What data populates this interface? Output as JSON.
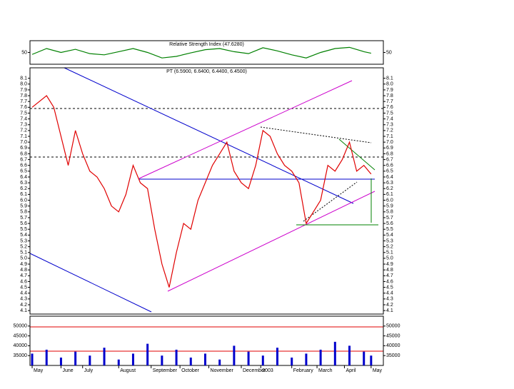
{
  "chart_data": [
    {
      "type": "line",
      "title": "Relative Strength Index (47.6280)",
      "x": [
        0,
        2,
        4,
        6,
        8,
        10,
        12,
        14,
        16,
        18,
        20,
        22,
        24,
        26,
        28,
        30,
        32,
        34,
        36,
        38,
        40,
        42,
        44,
        46,
        47
      ],
      "values": [
        45,
        60,
        50,
        58,
        47,
        44,
        52,
        60,
        50,
        36,
        40,
        49,
        57,
        60,
        52,
        47,
        62,
        54,
        44,
        36,
        50,
        60,
        63,
        52,
        48
      ],
      "color": "#008000",
      "xlim": [
        -0.3,
        48.7
      ],
      "ylim": [
        20,
        80
      ],
      "yticks": [
        50
      ]
    },
    {
      "type": "line",
      "title": "PT (6.5900, 6.6400, 6.4400, 6.4500)",
      "x": [
        0,
        1,
        2,
        3,
        4,
        5,
        6,
        7,
        8,
        9,
        10,
        11,
        12,
        13,
        14,
        15,
        16,
        17,
        18,
        19,
        20,
        21,
        22,
        23,
        24,
        25,
        26,
        27,
        28,
        29,
        30,
        31,
        32,
        33,
        34,
        35,
        36,
        37,
        38,
        39,
        40,
        41,
        42,
        43,
        44,
        45,
        46,
        47
      ],
      "values": [
        7.6,
        7.7,
        7.8,
        7.6,
        7.1,
        6.6,
        7.2,
        6.8,
        6.5,
        6.4,
        6.2,
        5.9,
        5.8,
        6.1,
        6.6,
        6.3,
        6.2,
        5.5,
        4.9,
        4.5,
        5.1,
        5.6,
        5.5,
        6.0,
        6.3,
        6.6,
        6.8,
        7.0,
        6.5,
        6.3,
        6.2,
        6.6,
        7.2,
        7.1,
        6.8,
        6.6,
        6.5,
        6.3,
        5.6,
        5.8,
        6.0,
        6.6,
        6.5,
        6.7,
        7.0,
        6.5,
        6.6,
        6.45
      ],
      "color": "#e00000",
      "xlim": [
        -0.3,
        48.7
      ],
      "ylim": [
        4.04,
        8.28
      ],
      "yticks": [
        4.1,
        4.2,
        4.3,
        4.4,
        4.5,
        4.6,
        4.7,
        4.8,
        4.9,
        {
          "value": 5,
          "label": "5.0"
        },
        5.1,
        5.2,
        5.3,
        5.4,
        5.5,
        5.6,
        5.7,
        5.8,
        5.9,
        {
          "value": 6,
          "label": "6.0"
        },
        6.1,
        6.2,
        6.3,
        6.4,
        6.5,
        6.6,
        6.7,
        6.8,
        6.9,
        {
          "value": 7,
          "label": "7.0"
        },
        7.1,
        7.2,
        7.3,
        7.4,
        7.5,
        7.6,
        7.7,
        7.8,
        7.9,
        {
          "value": 8,
          "label": "8.0"
        },
        8.1
      ]
    },
    {
      "type": "bar",
      "x": [
        0,
        2,
        4,
        6,
        8,
        10,
        12,
        14,
        16,
        18,
        20,
        22,
        24,
        26,
        28,
        30,
        32,
        34,
        36,
        38,
        40,
        42,
        44,
        46,
        47
      ],
      "values": [
        36000,
        38000,
        34000,
        37000,
        35000,
        39000,
        33000,
        36000,
        41000,
        35000,
        38000,
        34000,
        36000,
        33000,
        40000,
        37000,
        35000,
        39000,
        34000,
        36000,
        38000,
        42000,
        40000,
        37000,
        35000
      ],
      "color": "#0000cc",
      "xlim": [
        -0.3,
        48.7
      ],
      "ylim": [
        30000,
        55000
      ],
      "yticks": [
        35000,
        40000,
        45000,
        50000
      ],
      "xticks": [
        {
          "value": 0,
          "label": "May"
        },
        {
          "value": 4,
          "label": "June"
        },
        {
          "value": 7,
          "label": "July"
        },
        {
          "value": 12,
          "label": "August"
        },
        {
          "value": 16.5,
          "label": "September"
        },
        {
          "value": 20.5,
          "label": "October"
        },
        {
          "value": 24.5,
          "label": "November"
        },
        {
          "value": 29,
          "label": "December"
        },
        {
          "value": 31.7,
          "label": "2003"
        },
        {
          "value": 36,
          "label": "February"
        },
        {
          "value": 39.5,
          "label": "March"
        },
        {
          "value": 43.3,
          "label": "April"
        },
        {
          "value": 47,
          "label": "May"
        }
      ]
    }
  ]
}
